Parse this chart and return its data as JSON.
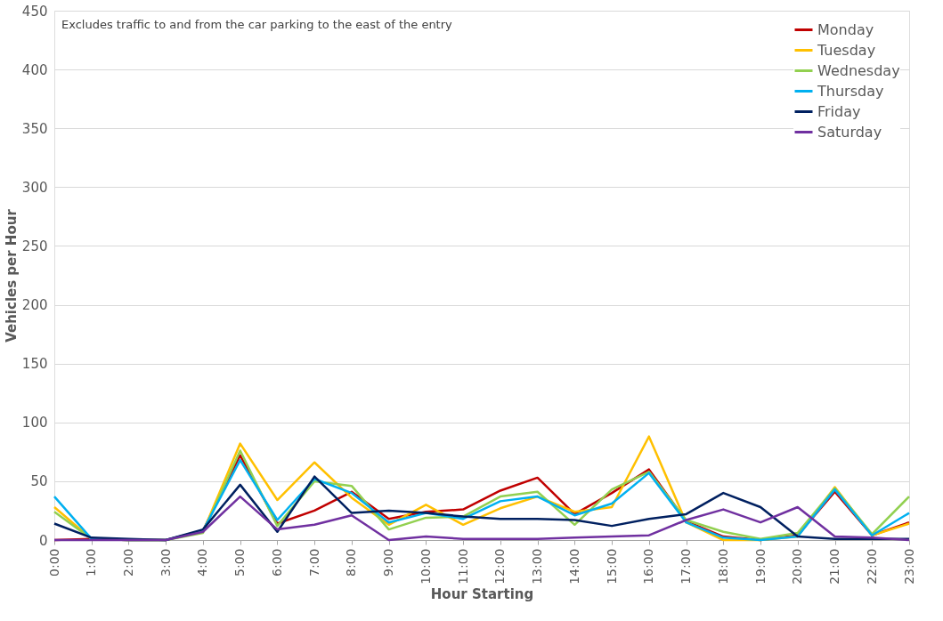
{
  "chart_data": {
    "type": "line",
    "xlabel": "Hour Starting",
    "ylabel": "Vehicles per Hour",
    "annotations": [
      "Excludes traffic to and from the car parking to the east of the entry"
    ],
    "categories": [
      "0:00",
      "1:00",
      "2:00",
      "3:00",
      "4:00",
      "5:00",
      "6:00",
      "7:00",
      "8:00",
      "9:00",
      "10:00",
      "11:00",
      "12:00",
      "13:00",
      "14:00",
      "15:00",
      "16:00",
      "17:00",
      "18:00",
      "19:00",
      "20:00",
      "21:00",
      "22:00",
      "23:00"
    ],
    "series": [
      {
        "name": "Monday",
        "color": "#c00000",
        "values": [
          0,
          1,
          0,
          0,
          8,
          72,
          14,
          25,
          41,
          18,
          24,
          26,
          42,
          53,
          22,
          40,
          60,
          16,
          3,
          0,
          4,
          41,
          4,
          15
        ]
      },
      {
        "name": "Tuesday",
        "color": "#ffc000",
        "values": [
          28,
          1,
          0,
          0,
          7,
          82,
          34,
          66,
          36,
          13,
          30,
          13,
          27,
          37,
          24,
          28,
          88,
          15,
          0,
          0,
          3,
          45,
          4,
          14
        ]
      },
      {
        "name": "Wednesday",
        "color": "#92d050",
        "values": [
          24,
          1,
          0,
          0,
          6,
          76,
          12,
          50,
          46,
          9,
          19,
          20,
          37,
          41,
          13,
          43,
          58,
          17,
          7,
          1,
          6,
          44,
          5,
          37
        ]
      },
      {
        "name": "Thursday",
        "color": "#00b0f0",
        "values": [
          37,
          1,
          0,
          0,
          8,
          68,
          17,
          52,
          40,
          15,
          23,
          18,
          33,
          37,
          21,
          31,
          57,
          15,
          2,
          0,
          3,
          43,
          4,
          23
        ]
      },
      {
        "name": "Friday",
        "color": "#002060",
        "values": [
          14,
          2,
          1,
          0,
          9,
          47,
          7,
          54,
          23,
          25,
          23,
          20,
          18,
          18,
          17,
          12,
          18,
          22,
          40,
          28,
          3,
          1,
          1,
          1
        ]
      },
      {
        "name": "Saturday",
        "color": "#7030a0",
        "values": [
          0,
          0,
          0,
          0,
          7,
          37,
          9,
          13,
          21,
          0,
          3,
          1,
          1,
          1,
          2,
          3,
          4,
          17,
          26,
          15,
          28,
          3,
          2,
          0
        ]
      }
    ],
    "ylim": [
      0,
      450
    ],
    "yticks": [
      0,
      50,
      100,
      150,
      200,
      250,
      300,
      350,
      400,
      450
    ],
    "grid": "y",
    "legend": "top right",
    "marker": "none",
    "line_style": "solid"
  }
}
